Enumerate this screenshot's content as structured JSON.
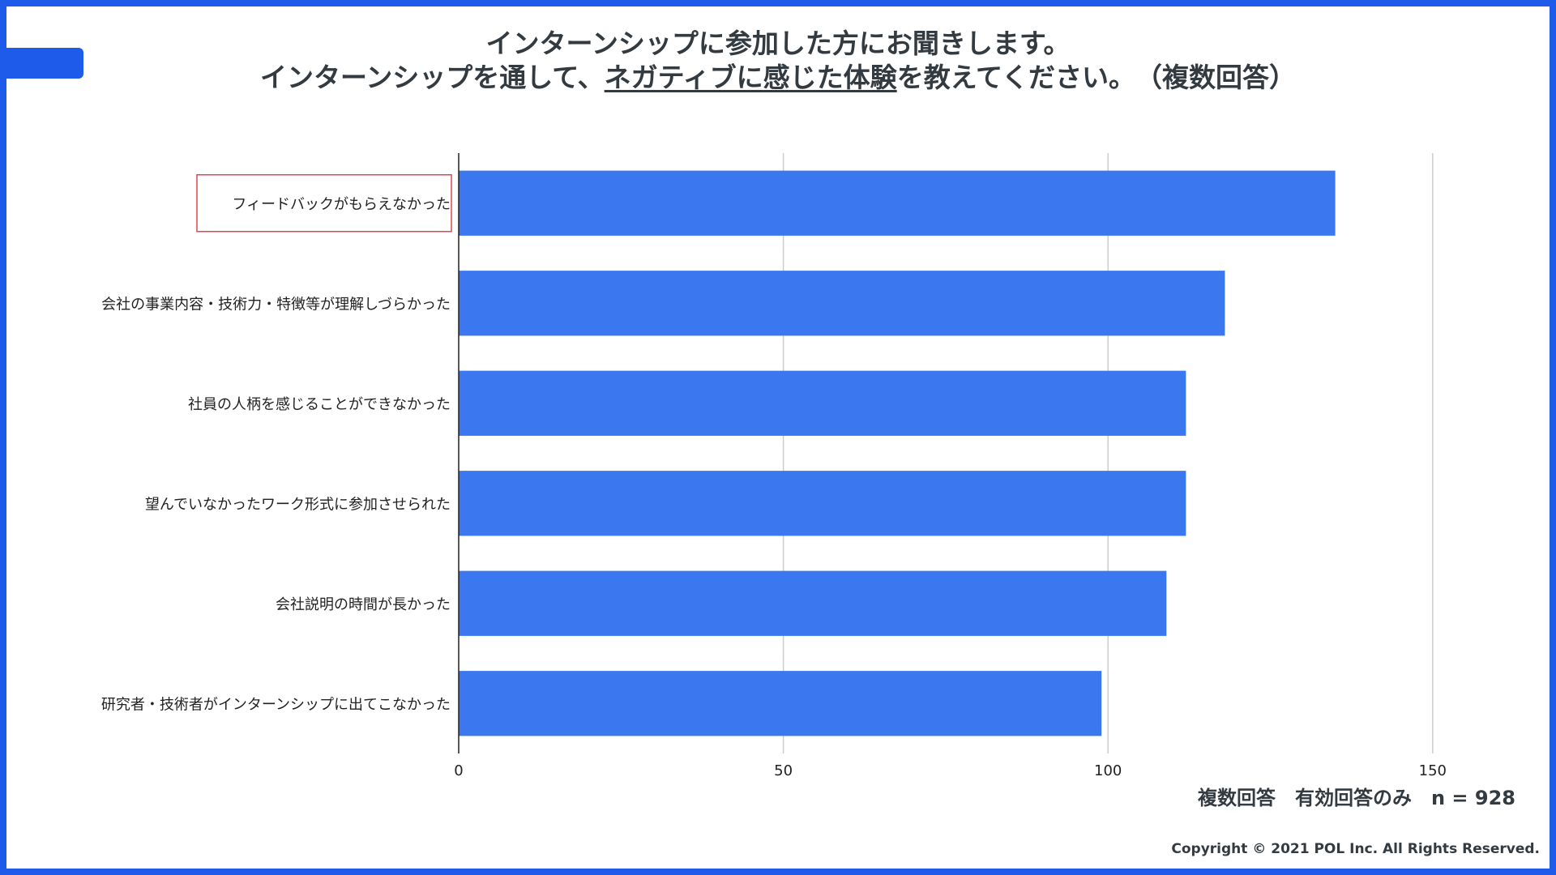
{
  "title": {
    "line1": "インターンシップに参加した方にお聞きします。",
    "line2_pre": "インターンシップを通して、",
    "line2_underlined": "ネガティブに感じた体験",
    "line2_post": "を教えてください。　（複数回答）"
  },
  "colors": {
    "frame": "#1f5bea",
    "bar": "#3b77ee",
    "highlight": "#e0474c"
  },
  "chart_data": {
    "type": "bar",
    "orientation": "horizontal",
    "categories": [
      "フィードバックがもらえなかった",
      "会社の事業内容・技術力・特徴等が理解しづらかった",
      "社員の人柄を感じることができなかった",
      "望んでいなかったワーク形式に参加させられた",
      "会社説明の時間が長かった",
      "研究者・技術者がインターンシップに出てこなかった"
    ],
    "values": [
      135,
      118,
      112,
      112,
      109,
      99
    ],
    "highlighted_category_index": 0,
    "xlim": [
      0,
      165
    ],
    "xticks": [
      0,
      50,
      100,
      150
    ],
    "grid": true,
    "title": "",
    "xlabel": "",
    "ylabel": ""
  },
  "note": "複数回答　有効回答のみ　n = 928",
  "copyright": "Copyright © 2021 POL Inc. All Rights Reserved."
}
